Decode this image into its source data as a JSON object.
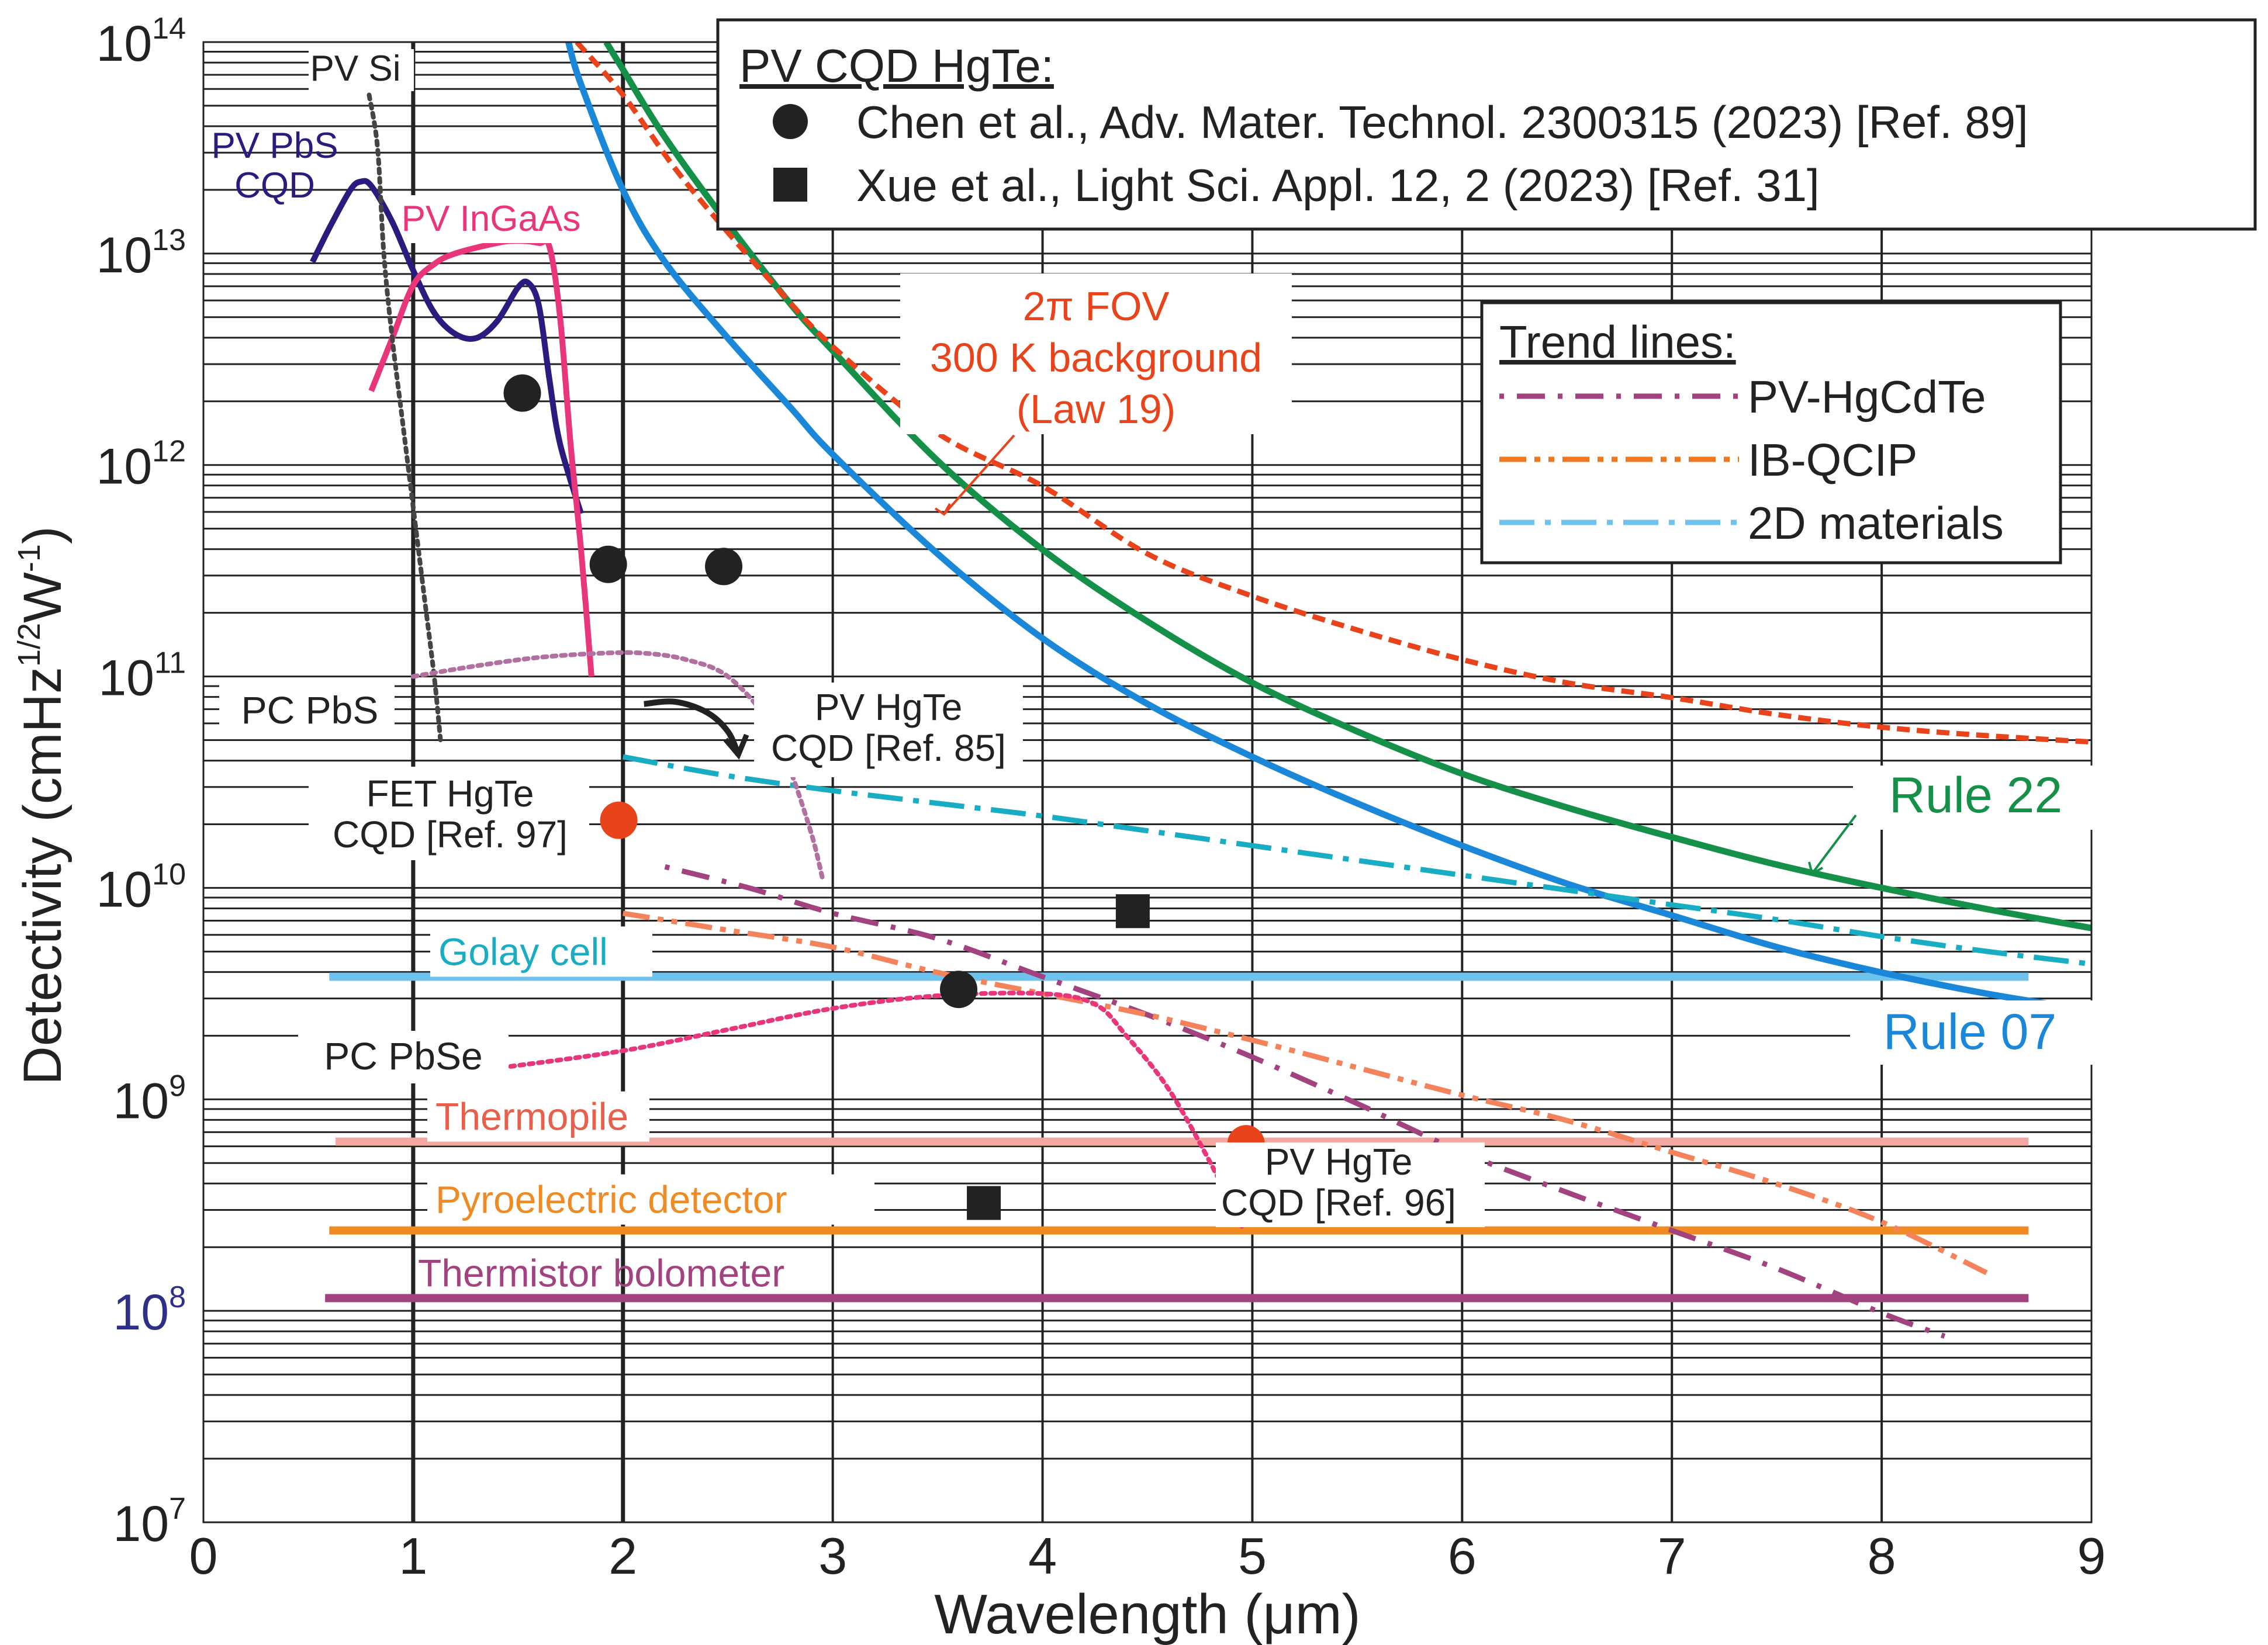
{
  "chart_data": {
    "type": "line",
    "title": "",
    "xlabel": "Wavelength (μm)",
    "ylabel_parts": [
      "Detectivity (cmHz",
      "1/2",
      "W",
      "-1",
      ")"
    ],
    "xlim": [
      0,
      9
    ],
    "ylim_log10": [
      7,
      14
    ],
    "y_scale": "log",
    "grid": true,
    "x_ticks": [
      {
        "value": 0,
        "label": "0"
      },
      {
        "value": 1,
        "label": "1"
      },
      {
        "value": 2,
        "label": "2"
      },
      {
        "value": 3,
        "label": "3"
      },
      {
        "value": 4,
        "label": "4"
      },
      {
        "value": 5,
        "label": "5"
      },
      {
        "value": 6,
        "label": "6"
      },
      {
        "value": 7,
        "label": "7"
      },
      {
        "value": 8,
        "label": "8"
      },
      {
        "value": 9,
        "label": "9"
      }
    ],
    "y_ticks": [
      {
        "exp": 7,
        "base": "10",
        "sup": "7",
        "color": "#222222"
      },
      {
        "exp": 8,
        "base": "10",
        "sup": "8",
        "color": "#2e2f86"
      },
      {
        "exp": 9,
        "base": "10",
        "sup": "9",
        "color": "#222222"
      },
      {
        "exp": 10,
        "base": "10",
        "sup": "10",
        "color": "#222222"
      },
      {
        "exp": 11,
        "base": "10",
        "sup": "11",
        "color": "#222222"
      },
      {
        "exp": 12,
        "base": "10",
        "sup": "12",
        "color": "#222222"
      },
      {
        "exp": 13,
        "base": "10",
        "sup": "13",
        "color": "#222222"
      },
      {
        "exp": 14,
        "base": "10",
        "sup": "14",
        "color": "#222222"
      }
    ],
    "legend_points": {
      "title": "PV CQD HgTe:",
      "entries": [
        {
          "marker": "circle",
          "label": "Chen et al., Adv. Mater. Technol. 2300315 (2023) [Ref. 89]"
        },
        {
          "marker": "square",
          "label": "Xue et al., Light Sci. Appl. 12, 2 (2023) [Ref. 31]"
        }
      ]
    },
    "legend_trends": {
      "title": "Trend lines:",
      "entries": [
        {
          "label": "PV-HgCdTe",
          "color": "#a2427f",
          "style": "dotdash"
        },
        {
          "label": "IB-QCIP",
          "color": "#f07820",
          "style": "dashdotdot"
        },
        {
          "label": "2D materials",
          "color": "#6ec3ee",
          "style": "dashdot"
        }
      ]
    },
    "series": [
      {
        "name": "Rule 22",
        "color": "#159048",
        "style": "solid",
        "width": 11,
        "x": [
          1.92,
          2.0,
          2.2,
          2.5,
          2.8,
          3.0,
          3.5,
          4.0,
          4.5,
          5.0,
          5.5,
          6.0,
          6.5,
          7.0,
          7.5,
          8.0,
          8.5,
          9.0
        ],
        "y": [
          14.0,
          13.87,
          13.55,
          13.14,
          12.76,
          12.54,
          12.02,
          11.6,
          11.26,
          10.97,
          10.74,
          10.54,
          10.38,
          10.24,
          10.11,
          10.0,
          9.9,
          9.81
        ]
      },
      {
        "name": "Rule 07",
        "color": "#1a87d8",
        "style": "solid",
        "width": 11,
        "x": [
          1.74,
          1.8,
          2.0,
          2.2,
          2.5,
          2.8,
          3.0,
          3.5,
          4.0,
          4.5,
          5.0,
          5.5,
          6.0,
          6.5,
          7.0,
          7.5,
          8.0,
          8.5,
          9.0
        ],
        "y": [
          14.0,
          13.8,
          13.3,
          12.96,
          12.6,
          12.27,
          12.05,
          11.58,
          11.18,
          10.87,
          10.62,
          10.4,
          10.2,
          10.02,
          9.87,
          9.72,
          9.6,
          9.5,
          9.42
        ]
      },
      {
        "name": "2π FOV 300 K background (Law 19)",
        "color": "#e8431b",
        "style": "dashed",
        "width": 9,
        "x": [
          1.78,
          2.0,
          2.25,
          2.5,
          2.75,
          3.0,
          3.5,
          4.0,
          4.5,
          5.0,
          5.5,
          6.0,
          6.5,
          7.0,
          7.5,
          8.0,
          8.5,
          9.0
        ],
        "y": [
          14.0,
          13.75,
          13.4,
          13.1,
          12.82,
          12.56,
          12.15,
          11.9,
          11.58,
          11.38,
          11.22,
          11.08,
          10.97,
          10.9,
          10.82,
          10.76,
          10.72,
          10.69
        ]
      },
      {
        "name": "PV-HgCdTe",
        "color": "#a2427f",
        "style": "dotdash",
        "width": 9,
        "x": [
          2.2,
          2.6,
          3.0,
          3.5,
          4.0,
          4.5,
          5.0,
          5.5,
          6.0,
          6.5,
          7.0,
          7.5,
          8.0,
          8.3
        ],
        "y": [
          10.1,
          10.0,
          9.88,
          9.76,
          9.58,
          9.4,
          9.2,
          8.98,
          8.75,
          8.56,
          8.38,
          8.2,
          7.99,
          7.88
        ]
      },
      {
        "name": "IB-QCIP",
        "color": "#f4825a",
        "style": "dashdotdot",
        "width": 9,
        "x": [
          2.0,
          2.5,
          3.0,
          3.5,
          4.0,
          4.5,
          5.0,
          5.5,
          6.0,
          6.5,
          7.0,
          7.5,
          8.0,
          8.5
        ],
        "y": [
          9.88,
          9.8,
          9.72,
          9.6,
          9.5,
          9.4,
          9.28,
          9.15,
          9.02,
          8.9,
          8.75,
          8.6,
          8.42,
          8.18
        ]
      },
      {
        "name": "2D materials",
        "color": "#19adc4",
        "style": "dashdot",
        "width": 9,
        "x": [
          2.0,
          2.5,
          3.0,
          3.5,
          4.0,
          4.5,
          5.0,
          5.5,
          6.0,
          6.5,
          7.0,
          7.5,
          8.0,
          8.5,
          9.0
        ],
        "y": [
          10.62,
          10.53,
          10.46,
          10.4,
          10.34,
          10.27,
          10.2,
          10.13,
          10.06,
          9.99,
          9.92,
          9.85,
          9.77,
          9.7,
          9.64
        ]
      },
      {
        "name": "PV PbS CQD",
        "color": "#2c1a7e",
        "style": "solid",
        "width": 10,
        "x": [
          0.52,
          0.6,
          0.7,
          0.75,
          0.8,
          0.9,
          1.0,
          1.1,
          1.2,
          1.3,
          1.4,
          1.5,
          1.55,
          1.6,
          1.65,
          1.7,
          1.8
        ],
        "y": [
          12.96,
          13.12,
          13.3,
          13.34,
          13.32,
          13.15,
          12.92,
          12.72,
          12.62,
          12.6,
          12.68,
          12.84,
          12.86,
          12.75,
          12.4,
          12.1,
          11.77
        ]
      },
      {
        "name": "PV InGaAs",
        "color": "#e9357a",
        "style": "solid",
        "width": 10,
        "x": [
          0.8,
          0.9,
          1.0,
          1.1,
          1.2,
          1.4,
          1.5,
          1.6,
          1.65,
          1.7,
          1.75,
          1.8,
          1.85
        ],
        "y": [
          12.35,
          12.6,
          12.85,
          12.95,
          13.0,
          13.05,
          13.06,
          13.05,
          13.03,
          12.7,
          12.1,
          11.6,
          11.0
        ]
      },
      {
        "name": "PV Si",
        "color": "#444444",
        "style": "dotted",
        "width": 8,
        "x": [
          0.79,
          0.83,
          0.86,
          0.9,
          0.95,
          1.0,
          1.05,
          1.1,
          1.13
        ],
        "y": [
          13.75,
          13.5,
          13.0,
          12.6,
          12.2,
          11.8,
          11.4,
          11.0,
          10.7
        ]
      },
      {
        "name": "PC PbS",
        "color": "#b070a0",
        "style": "dotted",
        "width": 8,
        "x": [
          1.0,
          1.3,
          1.6,
          1.9,
          2.1,
          2.3,
          2.5,
          2.7,
          2.8,
          2.9,
          2.95
        ],
        "y": [
          11.0,
          11.05,
          11.09,
          11.11,
          11.11,
          11.08,
          11.0,
          10.78,
          10.55,
          10.25,
          10.05
        ]
      },
      {
        "name": "PC PbSe",
        "color": "#e9357a",
        "style": "dotted",
        "width": 8,
        "x": [
          1.42,
          2.0,
          2.5,
          3.0,
          3.5,
          4.0,
          4.25,
          4.4,
          4.6,
          4.8,
          4.95
        ],
        "y": [
          9.15,
          9.23,
          9.33,
          9.43,
          9.49,
          9.5,
          9.45,
          9.3,
          9.05,
          8.7,
          8.4
        ]
      },
      {
        "name": "PV HgTe CQD [Ref. 85]",
        "color": "#222222",
        "style": "solid",
        "width": 10,
        "x": [
          2.1,
          2.25,
          2.4,
          2.5,
          2.55
        ],
        "y": [
          10.87,
          10.88,
          10.83,
          10.74,
          10.63
        ]
      }
    ],
    "points": [
      {
        "marker": "circle",
        "color": "#222222",
        "x": 1.52,
        "y": 12.34
      },
      {
        "marker": "circle",
        "color": "#222222",
        "x": 1.93,
        "y": 11.53
      },
      {
        "marker": "circle",
        "color": "#222222",
        "x": 2.48,
        "y": 11.52
      },
      {
        "marker": "circle",
        "color": "#222222",
        "x": 3.6,
        "y": 9.52
      },
      {
        "marker": "square",
        "color": "#222222",
        "x": 4.43,
        "y": 9.89
      },
      {
        "marker": "square",
        "color": "#222222",
        "x": 3.72,
        "y": 8.51
      },
      {
        "marker": "circle",
        "color": "#e8431b",
        "x": 1.98,
        "y": 10.32
      },
      {
        "marker": "circle",
        "color": "#e8431b",
        "x": 4.97,
        "y": 8.79
      }
    ],
    "horizontal_lines": [
      {
        "name": "Golay cell",
        "y": 9.58,
        "x_range": [
          0.6,
          8.7
        ],
        "color": "#6ec3ee",
        "label_color": "#19adc4"
      },
      {
        "name": "Thermopile",
        "y": 8.8,
        "x_range": [
          0.63,
          8.7
        ],
        "color": "#f1a8a0",
        "label_color": "#e8604c"
      },
      {
        "name": "Pyroelectric detector",
        "y": 8.38,
        "x_range": [
          0.6,
          8.7
        ],
        "color": "#ef8b22",
        "label_color": "#ef8b22"
      },
      {
        "name": "Thermistor bolometer",
        "y": 8.06,
        "x_range": [
          0.58,
          8.7
        ],
        "color": "#a2427f",
        "label_color": "#a2427f"
      }
    ],
    "annotations": [
      {
        "id": "pv-si",
        "lines": [
          "PV Si"
        ],
        "color": "#222222"
      },
      {
        "id": "pv-pbs-cqd",
        "lines": [
          "PV PbS",
          "CQD"
        ],
        "color": "#2c1a7e"
      },
      {
        "id": "pv-ingaas",
        "lines": [
          "PV InGaAs"
        ],
        "color": "#e9357a"
      },
      {
        "id": "pc-pbs",
        "lines": [
          "PC PbS"
        ],
        "color": "#222222"
      },
      {
        "id": "fet-hgte",
        "lines": [
          "FET HgTe",
          "CQD [Ref. 97]"
        ],
        "color": "#222222"
      },
      {
        "id": "pv-hgte-85",
        "lines": [
          "PV HgTe",
          "CQD [Ref. 85]"
        ],
        "color": "#222222"
      },
      {
        "id": "pc-pbse",
        "lines": [
          "PC PbSe"
        ],
        "color": "#222222"
      },
      {
        "id": "pv-hgte-96",
        "lines": [
          "PV HgTe",
          "CQD [Ref. 96]"
        ],
        "color": "#222222"
      },
      {
        "id": "fov",
        "lines": [
          "2π FOV",
          "300 K background",
          "(Law 19)"
        ],
        "color": "#e8431b"
      },
      {
        "id": "rule22",
        "lines": [
          "Rule 22"
        ],
        "color": "#159048"
      },
      {
        "id": "rule07",
        "lines": [
          "Rule 07"
        ],
        "color": "#1a87d8"
      }
    ]
  }
}
